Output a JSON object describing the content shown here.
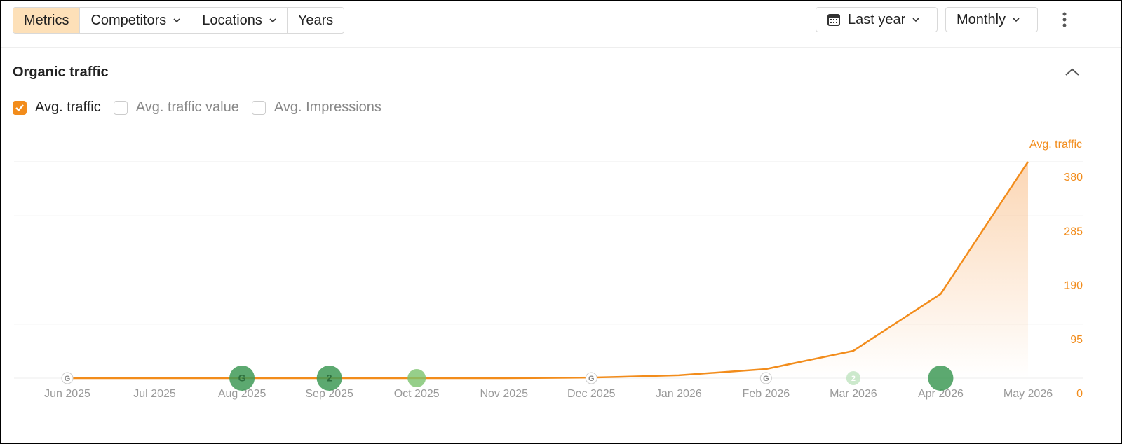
{
  "toolbar": {
    "tabs": [
      {
        "label": "Metrics",
        "active": true,
        "dropdown": false
      },
      {
        "label": "Competitors",
        "active": false,
        "dropdown": true
      },
      {
        "label": "Locations",
        "active": false,
        "dropdown": true
      },
      {
        "label": "Years",
        "active": false,
        "dropdown": false
      }
    ],
    "period": "Last year",
    "interval": "Monthly"
  },
  "section": {
    "title": "Organic traffic"
  },
  "metrics": [
    {
      "label": "Avg. traffic",
      "checked": true
    },
    {
      "label": "Avg. traffic value",
      "checked": false
    },
    {
      "label": "Avg. Impressions",
      "checked": false
    }
  ],
  "chart_data": {
    "type": "line",
    "y_axis_label": "Avg. traffic",
    "categories": [
      "Jun 2025",
      "Jul 2025",
      "Aug 2025",
      "Sep 2025",
      "Oct 2025",
      "Nov 2025",
      "Dec 2025",
      "Jan 2026",
      "Feb 2026",
      "Mar 2026",
      "Apr 2026",
      "May 2026"
    ],
    "series": [
      {
        "name": "Avg. traffic",
        "color": "#f28c1b",
        "values": [
          0,
          0,
          0,
          0,
          0,
          0,
          1,
          5,
          16,
          48,
          148,
          380
        ]
      }
    ],
    "ylim": [
      0,
      380
    ],
    "yticks": [
      0,
      95,
      190,
      285,
      380
    ],
    "grid": true,
    "annotations": [
      {
        "at": "Jun 2025",
        "kind": "google",
        "label": "G"
      },
      {
        "at": "Aug 2025",
        "kind": "major",
        "label": "G"
      },
      {
        "at": "Sep 2025",
        "kind": "major",
        "label": "2"
      },
      {
        "at": "Oct 2025",
        "kind": "minor"
      },
      {
        "at": "Dec 2025",
        "kind": "google",
        "label": "G"
      },
      {
        "at": "Feb 2026",
        "kind": "google",
        "label": "G"
      },
      {
        "at": "Mar 2026",
        "kind": "faint",
        "label": "2"
      },
      {
        "at": "Apr 2026",
        "kind": "major"
      }
    ]
  }
}
